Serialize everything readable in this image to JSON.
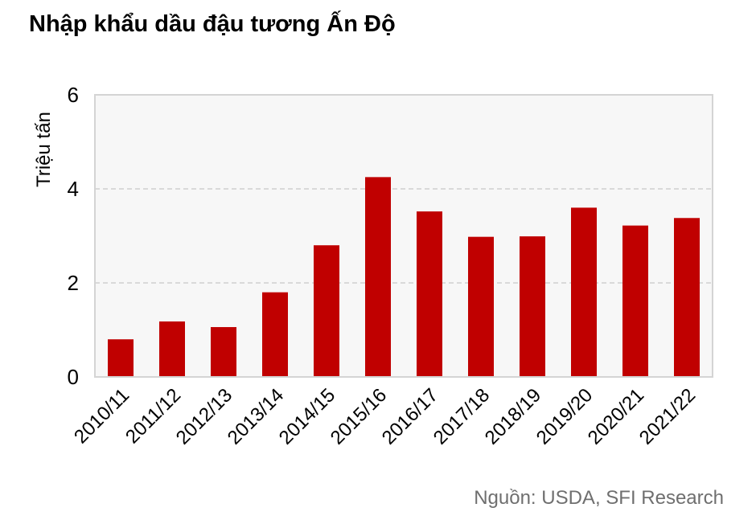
{
  "title": "Nhập khẩu dầu đậu tương Ấn Độ",
  "source": "Nguồn: USDA, SFI Research",
  "colors": {
    "bar": "#c00000",
    "plot_bg": "#f7f7f7",
    "grid": "#d9d9d9",
    "frame": "#d4d4d4"
  },
  "chart_data": {
    "type": "bar",
    "title": "Nhập khẩu dầu đậu tương Ấn Độ",
    "xlabel": "",
    "ylabel": "Triệu tấn",
    "ylim": [
      0,
      6
    ],
    "yticks": [
      0,
      2,
      4,
      6
    ],
    "grid": "horizontal dashed",
    "legend": "none",
    "categories": [
      "2010/11",
      "2011/12",
      "2012/13",
      "2013/14",
      "2014/15",
      "2015/16",
      "2016/17",
      "2017/18",
      "2018/19",
      "2019/20",
      "2020/21",
      "2021/22"
    ],
    "values": [
      0.8,
      1.18,
      1.06,
      1.8,
      2.8,
      4.25,
      3.52,
      2.98,
      2.99,
      3.6,
      3.22,
      3.38
    ]
  }
}
